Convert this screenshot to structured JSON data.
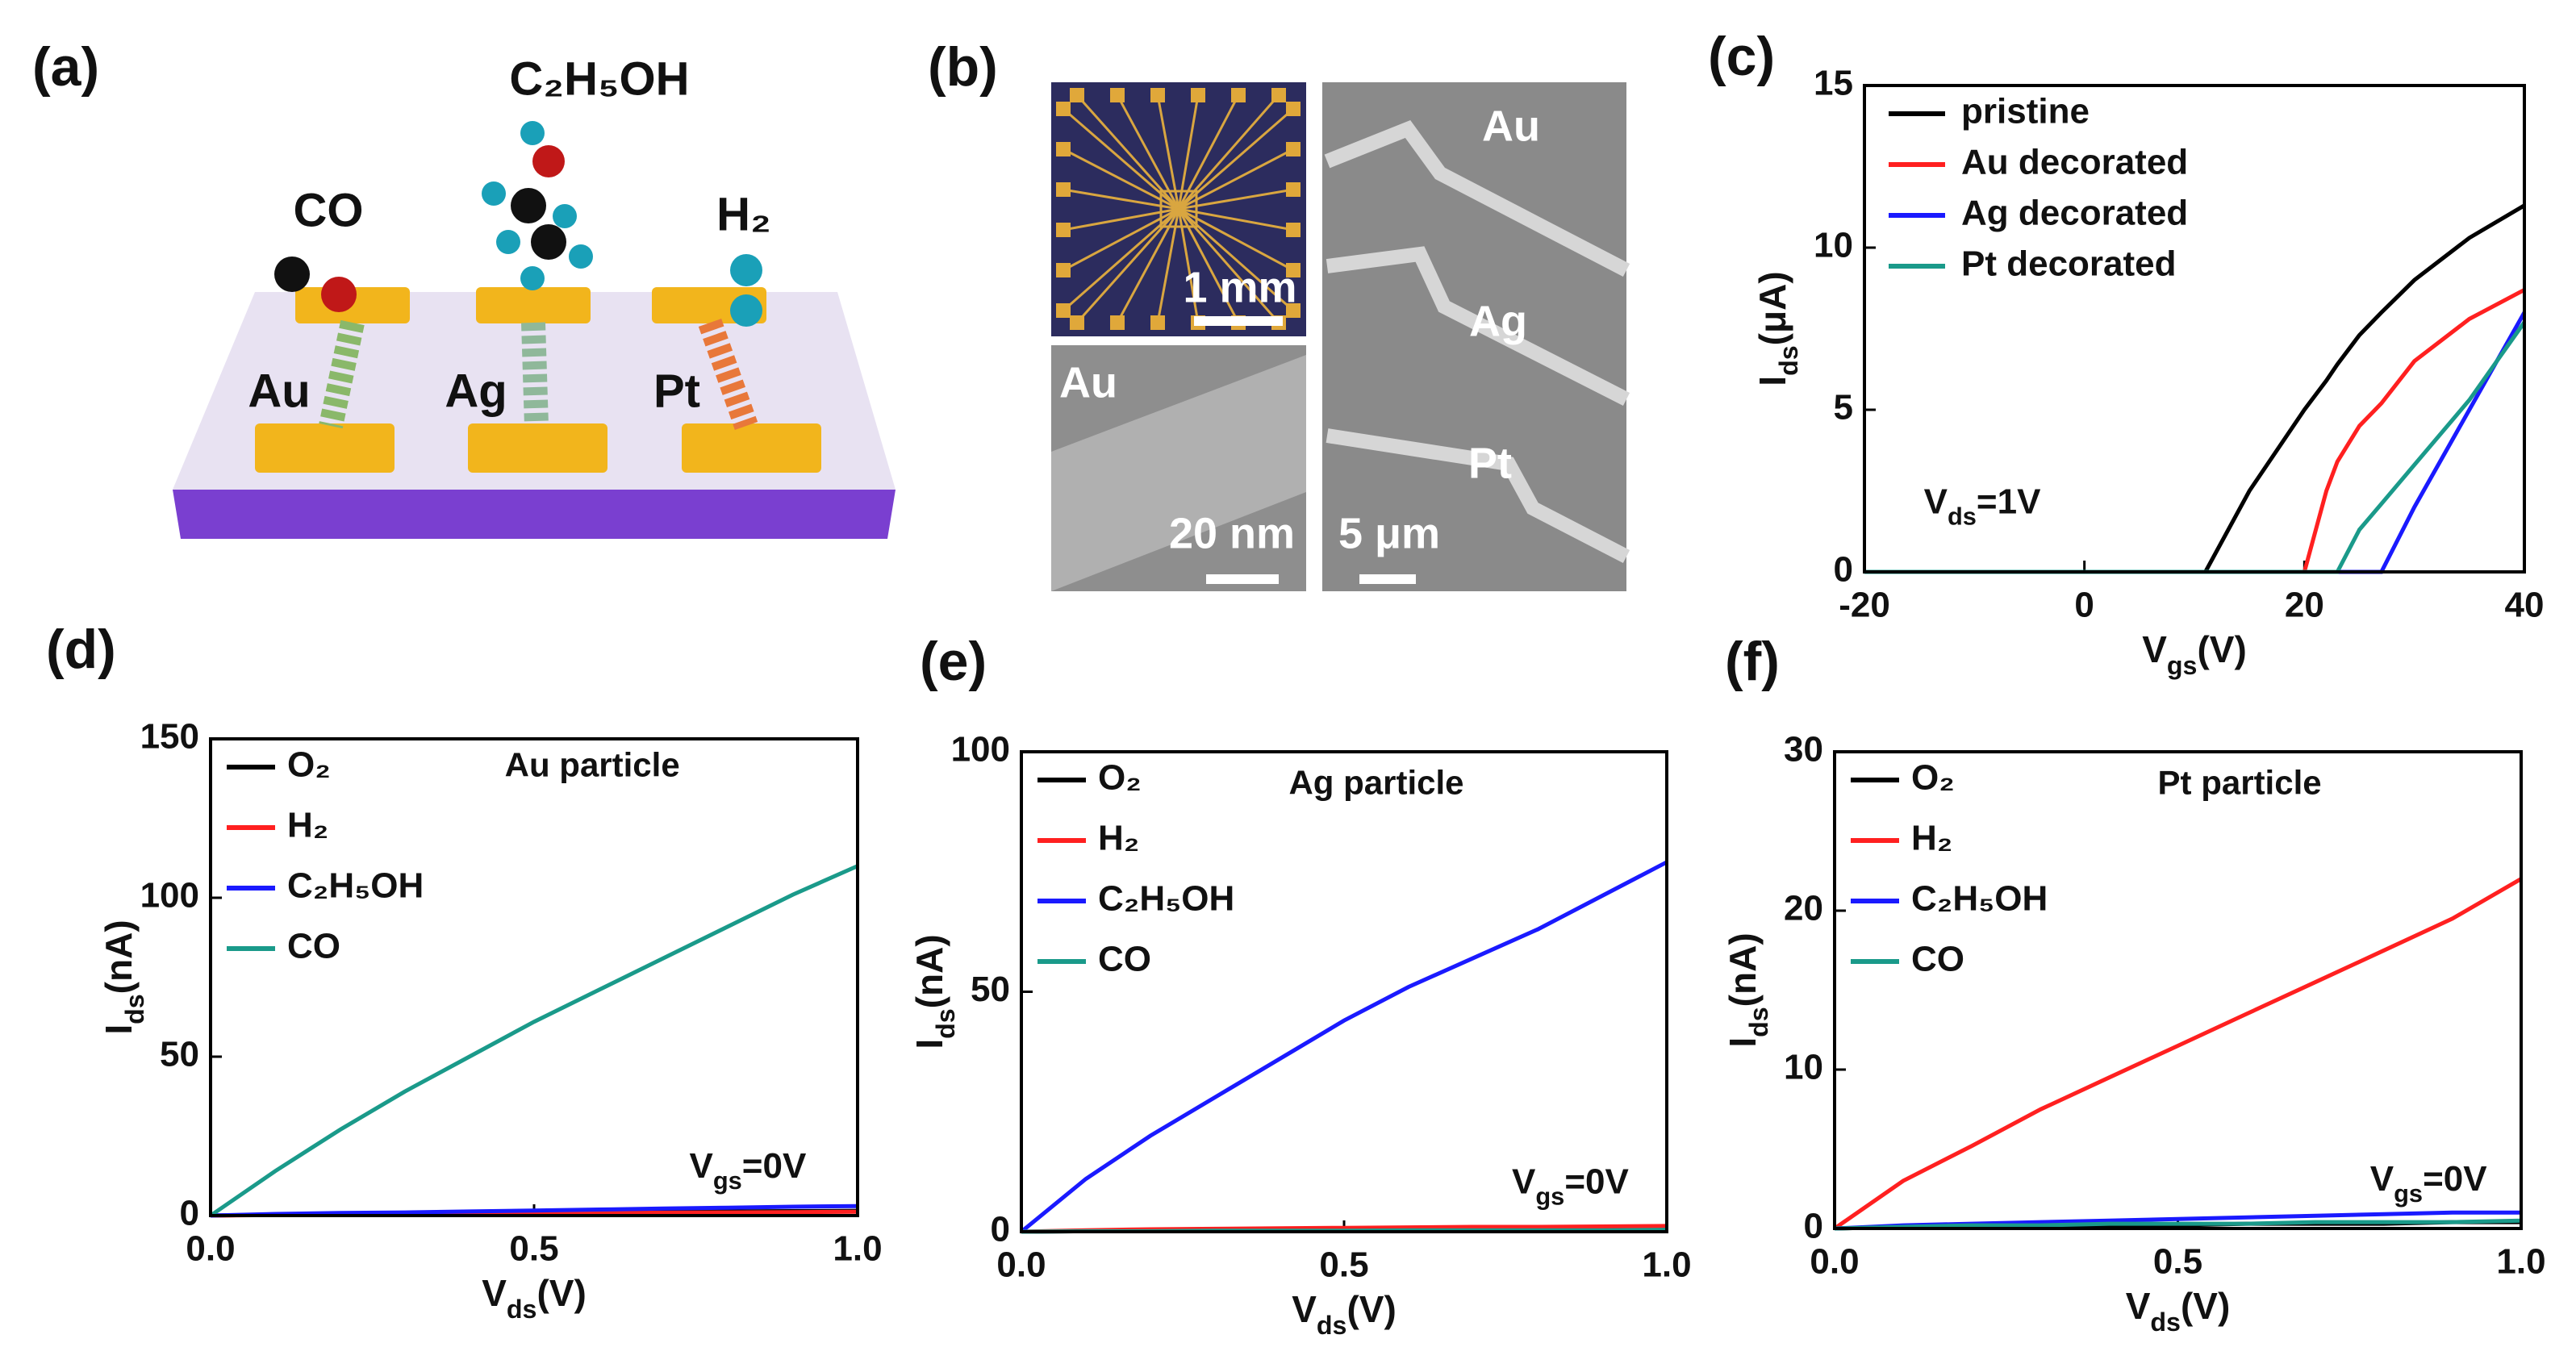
{
  "illustration": {
    "panel_label": "(a)",
    "molecules": [
      "C₂H₅OH",
      "CO",
      "H₂"
    ],
    "metals": [
      "Au",
      "Ag",
      "Pt"
    ]
  },
  "micrographs": {
    "panel_label": "(b)",
    "scale_bars": [
      "1 mm",
      "20 nm",
      "5 μm"
    ],
    "inset_label": "Au",
    "wire_labels": [
      "Au",
      "Ag",
      "Pt"
    ]
  },
  "chart_data": [
    {
      "type": "line",
      "panel_label": "(c)",
      "annotation": [
        "V",
        "ds",
        "=1V"
      ],
      "xlabel": [
        "V",
        "gs",
        "(V)"
      ],
      "ylabel": [
        "I",
        "ds",
        "(μA)"
      ],
      "x": [
        -20,
        0,
        11,
        15,
        20,
        22,
        23,
        25,
        27,
        30,
        35,
        40
      ],
      "xlim": [
        -20,
        40
      ],
      "ylim": [
        0,
        15
      ],
      "xticks": [
        -20,
        0,
        20,
        40
      ],
      "yticks": [
        0,
        5,
        10,
        15
      ],
      "legend": "upper left",
      "series": [
        {
          "name": "pristine",
          "color": "#000000",
          "values": [
            0,
            0,
            0,
            2.5,
            5,
            5.9,
            6.4,
            7.3,
            8,
            9,
            10.3,
            11.3
          ]
        },
        {
          "name": "Au decorated",
          "color": "#ff2020",
          "values": [
            0,
            0,
            0,
            0,
            0,
            2.5,
            3.4,
            4.5,
            5.2,
            6.5,
            7.8,
            8.7
          ]
        },
        {
          "name": "Ag decorated",
          "color": "#1a1aff",
          "values": [
            0,
            0,
            0,
            0,
            0,
            0,
            0,
            0,
            0,
            2,
            5,
            8
          ]
        },
        {
          "name": "Pt  decorated",
          "color": "#1a9a8a",
          "values": [
            0,
            0,
            0,
            0,
            0,
            0,
            0,
            1.3,
            2.1,
            3.3,
            5.3,
            7.7
          ]
        }
      ]
    },
    {
      "type": "line",
      "panel_label": "(d)",
      "title": "Au particle",
      "annotation": [
        "V",
        "gs",
        "=0V"
      ],
      "xlabel": [
        "V",
        "ds",
        "(V)"
      ],
      "ylabel": [
        "I",
        "ds",
        "(nA)"
      ],
      "x": [
        0,
        0.1,
        0.2,
        0.3,
        0.4,
        0.5,
        0.6,
        0.7,
        0.8,
        0.9,
        1.0
      ],
      "xlim": [
        0,
        1
      ],
      "ylim": [
        0,
        150
      ],
      "xticks": [
        {
          "value": 0,
          "label": "0.0"
        },
        0.5,
        {
          "value": 1,
          "label": "1.0"
        }
      ],
      "yticks": [
        0,
        50,
        100,
        150
      ],
      "legend": "upper left",
      "series": [
        {
          "name": "O₂",
          "color": "#000000",
          "values": [
            0,
            0.3,
            0.5,
            0.7,
            0.8,
            1,
            1.1,
            1.2,
            1.3,
            1.4,
            1.5
          ]
        },
        {
          "name": "H₂",
          "color": "#ff2020",
          "values": [
            0,
            0.2,
            0.4,
            0.5,
            0.6,
            0.7,
            0.8,
            0.9,
            1,
            1.1,
            1.2
          ]
        },
        {
          "name": "C₂H₅OH",
          "color": "#1a1aff",
          "values": [
            0,
            0.5,
            0.8,
            1,
            1.3,
            1.6,
            1.9,
            2.2,
            2.5,
            2.8,
            3
          ]
        },
        {
          "name": "CO",
          "color": "#1a9a8a",
          "values": [
            0,
            14,
            27,
            39,
            50,
            61,
            71,
            81,
            91,
            101,
            110
          ]
        }
      ]
    },
    {
      "type": "line",
      "panel_label": "(e)",
      "title": "Ag particle",
      "annotation": [
        "V",
        "gs",
        "=0V"
      ],
      "xlabel": [
        "V",
        "ds",
        "(V)"
      ],
      "ylabel": [
        "I",
        "ds",
        "(nA)"
      ],
      "x": [
        0,
        0.1,
        0.2,
        0.3,
        0.4,
        0.5,
        0.6,
        0.7,
        0.8,
        0.9,
        1.0
      ],
      "xlim": [
        0,
        1
      ],
      "ylim": [
        0,
        100
      ],
      "xticks": [
        {
          "value": 0,
          "label": "0.0"
        },
        0.5,
        {
          "value": 1,
          "label": "1.0"
        }
      ],
      "yticks": [
        0,
        50,
        100
      ],
      "legend": "upper left",
      "series": [
        {
          "name": "O₂",
          "color": "#000000",
          "values": [
            0,
            0.1,
            0.2,
            0.2,
            0.3,
            0.3,
            0.3,
            0.4,
            0.4,
            0.4,
            0.5
          ]
        },
        {
          "name": "H₂",
          "color": "#ff2020",
          "values": [
            0,
            0.3,
            0.5,
            0.6,
            0.7,
            0.8,
            0.9,
            1,
            1,
            1.1,
            1.2
          ]
        },
        {
          "name": "C₂H₅OH",
          "color": "#1a1aff",
          "values": [
            0,
            11,
            20,
            28,
            36,
            44,
            51,
            57,
            63,
            70,
            77
          ]
        },
        {
          "name": "CO",
          "color": "#1a9a8a",
          "values": [
            0,
            0.1,
            0.1,
            0.2,
            0.2,
            0.2,
            0.3,
            0.3,
            0.3,
            0.3,
            0.4
          ]
        }
      ]
    },
    {
      "type": "line",
      "panel_label": "(f)",
      "title": "Pt particle",
      "annotation": [
        "V",
        "gs",
        "=0V"
      ],
      "xlabel": [
        "V",
        "ds",
        "(V)"
      ],
      "ylabel": [
        "I",
        "ds",
        "(nA)"
      ],
      "x": [
        0,
        0.1,
        0.2,
        0.3,
        0.4,
        0.5,
        0.6,
        0.7,
        0.8,
        0.9,
        1.0
      ],
      "xlim": [
        0,
        1
      ],
      "ylim": [
        0,
        30
      ],
      "xticks": [
        {
          "value": 0,
          "label": "0.0"
        },
        0.5,
        {
          "value": 1,
          "label": "1.0"
        }
      ],
      "yticks": [
        0,
        10,
        20,
        30
      ],
      "legend": "upper left",
      "series": [
        {
          "name": "O₂",
          "color": "#000000",
          "values": [
            0,
            0.1,
            0.1,
            0.2,
            0.2,
            0.2,
            0.3,
            0.3,
            0.3,
            0.4,
            0.4
          ]
        },
        {
          "name": "H₂",
          "color": "#ff2020",
          "values": [
            0,
            3,
            5.2,
            7.5,
            9.5,
            11.5,
            13.5,
            15.5,
            17.5,
            19.5,
            22
          ]
        },
        {
          "name": "C₂H₅OH",
          "color": "#1a1aff",
          "values": [
            0,
            0.2,
            0.3,
            0.4,
            0.5,
            0.6,
            0.7,
            0.8,
            0.9,
            1,
            1
          ]
        },
        {
          "name": "CO",
          "color": "#1a9a8a",
          "values": [
            0,
            0.1,
            0.2,
            0.2,
            0.3,
            0.3,
            0.3,
            0.4,
            0.4,
            0.4,
            0.5
          ]
        }
      ]
    }
  ]
}
